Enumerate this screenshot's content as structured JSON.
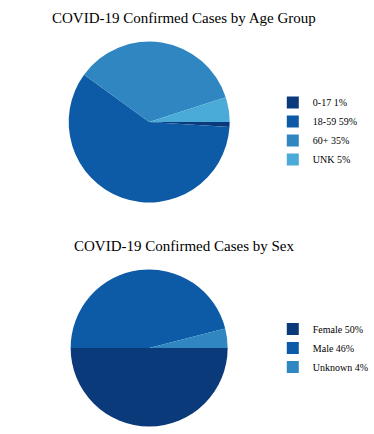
{
  "chart_data": [
    {
      "type": "pie",
      "title": "COVID-19 Confirmed Cases by Age Group",
      "categories": [
        "0-17 1%",
        "18-59 59%",
        "60+ 35%",
        "UNK 5%"
      ],
      "values": [
        1,
        59,
        35,
        5
      ],
      "colors": [
        "#0b3a7c",
        "#0d5ba6",
        "#2f86c0",
        "#4aaad8"
      ],
      "legend": "right"
    },
    {
      "type": "pie",
      "title": "COVID-19 Confirmed Cases by Sex",
      "categories": [
        "Female 50%",
        "Male 46%",
        "Unknown 4%"
      ],
      "values": [
        50,
        46,
        4
      ],
      "colors": [
        "#0a3a7a",
        "#0d5ba6",
        "#2f86c0"
      ],
      "legend": "right"
    }
  ]
}
